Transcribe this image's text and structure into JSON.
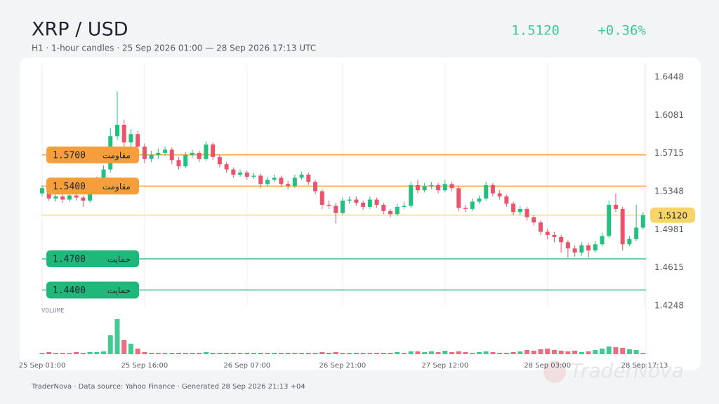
{
  "header": {
    "title": "XRP / USD",
    "subtitle": "H1 · 1-hour candles · 25 Sep 2026 01:00 — 28 Sep 2026 17:13 UTC",
    "price": "1.5120",
    "change": "+0.36%"
  },
  "chart_data": {
    "type": "candlestick",
    "up_color": "#22c17f",
    "down_color": "#e8556a",
    "xlim": [
      0,
      88.22
    ],
    "xticks": [
      {
        "value": 0,
        "label": "25 Sep 01:00"
      },
      {
        "value": 15,
        "label": "25 Sep 16:00"
      },
      {
        "value": 30,
        "label": "26 Sep 07:00"
      },
      {
        "value": 44,
        "label": "26 Sep 21:00"
      },
      {
        "value": 59,
        "label": "27 Sep 12:00"
      },
      {
        "value": 74,
        "label": "28 Sep 03:00"
      },
      {
        "value": 88.22,
        "label": "28 Sep 17:13"
      }
    ],
    "ylim": [
      1.4248,
      1.6448
    ],
    "yticks": [
      1.6448,
      1.6081,
      1.5715,
      1.5348,
      1.4981,
      1.4615,
      1.4248
    ],
    "open": [
      1.533,
      1.538,
      1.528,
      1.53,
      1.527,
      1.531,
      1.529,
      1.526,
      1.535,
      1.545,
      1.556,
      1.588,
      1.599,
      1.582,
      1.59,
      1.578,
      1.566,
      1.57,
      1.572,
      1.575,
      1.565,
      1.559,
      1.57,
      1.572,
      1.566,
      1.58,
      1.568,
      1.561,
      1.556,
      1.551,
      1.553,
      1.549,
      1.55,
      1.542,
      1.546,
      1.548,
      1.542,
      1.54,
      1.548,
      1.551,
      1.544,
      1.535,
      1.522,
      1.521,
      1.514,
      1.526,
      1.527,
      1.524,
      1.52,
      1.527,
      1.522,
      1.516,
      1.513,
      1.52,
      1.521,
      1.541,
      1.536,
      1.54,
      1.541,
      1.536,
      1.542,
      1.538,
      1.519,
      1.518,
      1.525,
      1.528,
      1.541,
      1.533,
      1.53,
      1.523,
      1.515,
      1.518,
      1.51,
      1.505,
      1.496,
      1.493,
      1.491,
      1.486,
      1.48,
      1.476,
      1.483,
      1.478,
      1.484,
      1.492,
      1.522,
      1.518,
      1.484,
      1.489,
      1.5
    ],
    "high": [
      1.541,
      1.54,
      1.533,
      1.532,
      1.534,
      1.533,
      1.531,
      1.538,
      1.549,
      1.56,
      1.596,
      1.631,
      1.604,
      1.595,
      1.593,
      1.581,
      1.574,
      1.576,
      1.578,
      1.577,
      1.568,
      1.573,
      1.575,
      1.574,
      1.583,
      1.582,
      1.57,
      1.563,
      1.558,
      1.556,
      1.555,
      1.553,
      1.552,
      1.549,
      1.551,
      1.55,
      1.545,
      1.551,
      1.554,
      1.553,
      1.546,
      1.537,
      1.526,
      1.524,
      1.529,
      1.53,
      1.53,
      1.526,
      1.53,
      1.529,
      1.524,
      1.518,
      1.523,
      1.525,
      1.544,
      1.546,
      1.543,
      1.544,
      1.543,
      1.546,
      1.544,
      1.54,
      1.522,
      1.528,
      1.531,
      1.544,
      1.543,
      1.536,
      1.532,
      1.525,
      1.521,
      1.52,
      1.512,
      1.507,
      1.499,
      1.496,
      1.493,
      1.488,
      1.483,
      1.486,
      1.485,
      1.487,
      1.495,
      1.526,
      1.533,
      1.52,
      1.492,
      1.522,
      1.515
    ],
    "low": [
      1.53,
      1.526,
      1.525,
      1.524,
      1.525,
      1.526,
      1.52,
      1.524,
      1.533,
      1.542,
      1.553,
      1.584,
      1.578,
      1.577,
      1.574,
      1.562,
      1.563,
      1.566,
      1.569,
      1.561,
      1.556,
      1.557,
      1.567,
      1.563,
      1.564,
      1.565,
      1.558,
      1.553,
      1.548,
      1.549,
      1.546,
      1.547,
      1.538,
      1.54,
      1.544,
      1.539,
      1.537,
      1.538,
      1.546,
      1.541,
      1.532,
      1.518,
      1.518,
      1.504,
      1.512,
      1.523,
      1.521,
      1.517,
      1.518,
      1.519,
      1.513,
      1.51,
      1.511,
      1.518,
      1.519,
      1.533,
      1.534,
      1.537,
      1.533,
      1.534,
      1.535,
      1.516,
      1.515,
      1.516,
      1.523,
      1.526,
      1.53,
      1.527,
      1.52,
      1.512,
      1.512,
      1.507,
      1.502,
      1.493,
      1.489,
      1.486,
      1.476,
      1.471,
      1.472,
      1.473,
      1.471,
      1.476,
      1.482,
      1.49,
      1.515,
      1.478,
      1.482,
      1.487,
      1.498
    ],
    "close": [
      1.538,
      1.528,
      1.53,
      1.527,
      1.531,
      1.529,
      1.526,
      1.535,
      1.545,
      1.556,
      1.588,
      1.599,
      1.582,
      1.59,
      1.578,
      1.566,
      1.57,
      1.572,
      1.575,
      1.565,
      1.559,
      1.57,
      1.572,
      1.566,
      1.58,
      1.568,
      1.561,
      1.556,
      1.551,
      1.553,
      1.549,
      1.55,
      1.542,
      1.546,
      1.548,
      1.542,
      1.54,
      1.548,
      1.551,
      1.544,
      1.535,
      1.522,
      1.521,
      1.514,
      1.526,
      1.527,
      1.524,
      1.52,
      1.527,
      1.522,
      1.516,
      1.513,
      1.52,
      1.521,
      1.541,
      1.536,
      1.54,
      1.541,
      1.536,
      1.542,
      1.538,
      1.519,
      1.518,
      1.525,
      1.528,
      1.541,
      1.533,
      1.53,
      1.523,
      1.515,
      1.518,
      1.51,
      1.505,
      1.496,
      1.493,
      1.491,
      1.486,
      1.48,
      1.476,
      1.483,
      1.478,
      1.484,
      1.492,
      1.522,
      1.518,
      1.484,
      1.489,
      1.5,
      1.512
    ],
    "volume_label": "VOLUME",
    "volume": [
      2,
      3,
      2,
      2,
      2,
      3,
      2,
      3,
      3,
      4,
      27,
      50,
      20,
      15,
      8,
      3,
      2,
      2,
      2,
      2,
      2,
      2,
      2,
      2,
      3,
      2,
      2,
      2,
      2,
      2,
      2,
      2,
      2,
      2,
      2,
      2,
      2,
      2,
      2,
      2,
      2,
      3,
      2,
      3,
      2,
      2,
      2,
      2,
      2,
      2,
      2,
      2,
      3,
      2,
      4,
      4,
      3,
      4,
      3,
      5,
      3,
      4,
      3,
      2,
      3,
      4,
      3,
      2,
      2,
      3,
      4,
      6,
      5,
      7,
      8,
      6,
      5,
      4,
      5,
      3,
      4,
      6,
      8,
      11,
      10,
      9,
      7,
      6,
      2
    ],
    "levels": [
      {
        "value": 1.57,
        "label": "1.5700",
        "name": "مقاومت",
        "color": "#f59e3b"
      },
      {
        "value": 1.54,
        "label": "1.5400",
        "name": "مقاومت",
        "color": "#f59e3b"
      },
      {
        "value": 1.47,
        "label": "1.4700",
        "name": "حمايت",
        "color": "#1fb87a"
      },
      {
        "value": 1.44,
        "label": "1.4400",
        "name": "حمايت",
        "color": "#1fb87a"
      }
    ],
    "last_price": {
      "value": 1.512,
      "label": "1.5120",
      "color": "#f5d56a"
    }
  },
  "footer": "TraderNova · Data source: Yahoo Finance · Generated 28 Sep 2026 21:13 +04",
  "watermark": "TraderNova"
}
